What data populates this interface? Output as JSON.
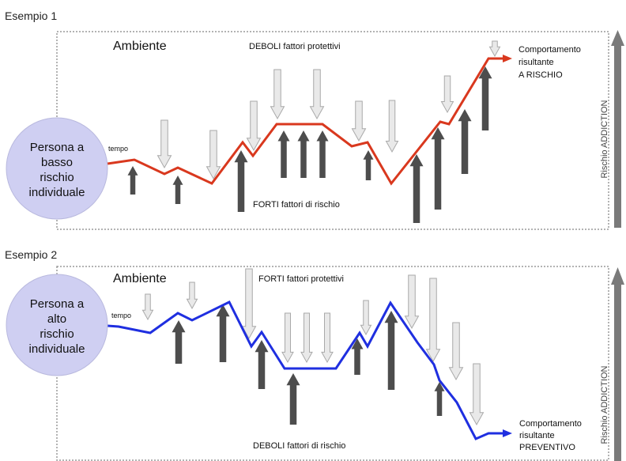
{
  "examples": [
    {
      "title": "Esempio 1",
      "environment_label": "Ambiente",
      "protective_label": "DEBOLI fattori protettivi",
      "risk_label": "FORTI fattori di rischio",
      "person_lines": [
        "Persona a",
        "basso",
        "rischio",
        "individuale"
      ],
      "time_label": "tempo",
      "outcome_lines": [
        "Comportamento",
        "risultante",
        "A RISCHIO"
      ],
      "axis_label": "Rischio ADDICTION",
      "line_color": "#d9381e"
    },
    {
      "title": "Esempio 2",
      "environment_label": "Ambiente",
      "protective_label": "FORTI fattori protettivi",
      "risk_label": "DEBOLI fattori di rischio",
      "person_lines": [
        "Persona a",
        "alto",
        "rischio",
        "individuale"
      ],
      "time_label": "tempo",
      "outcome_lines": [
        "Comportamento",
        "risultante",
        "PREVENTIVO"
      ],
      "axis_label": "Rischio ADDICTION",
      "line_color": "#1f2fe0"
    }
  ],
  "colors": {
    "person_fill": "#cfcff2",
    "person_stroke": "#b9b9de",
    "protective_fill": "#e9e9e9",
    "protective_stroke": "#a9a9a9",
    "risk_fill": "#4d4d4d",
    "axis_arrow": "#7a7a7a",
    "frame": "#9a9a9a"
  }
}
